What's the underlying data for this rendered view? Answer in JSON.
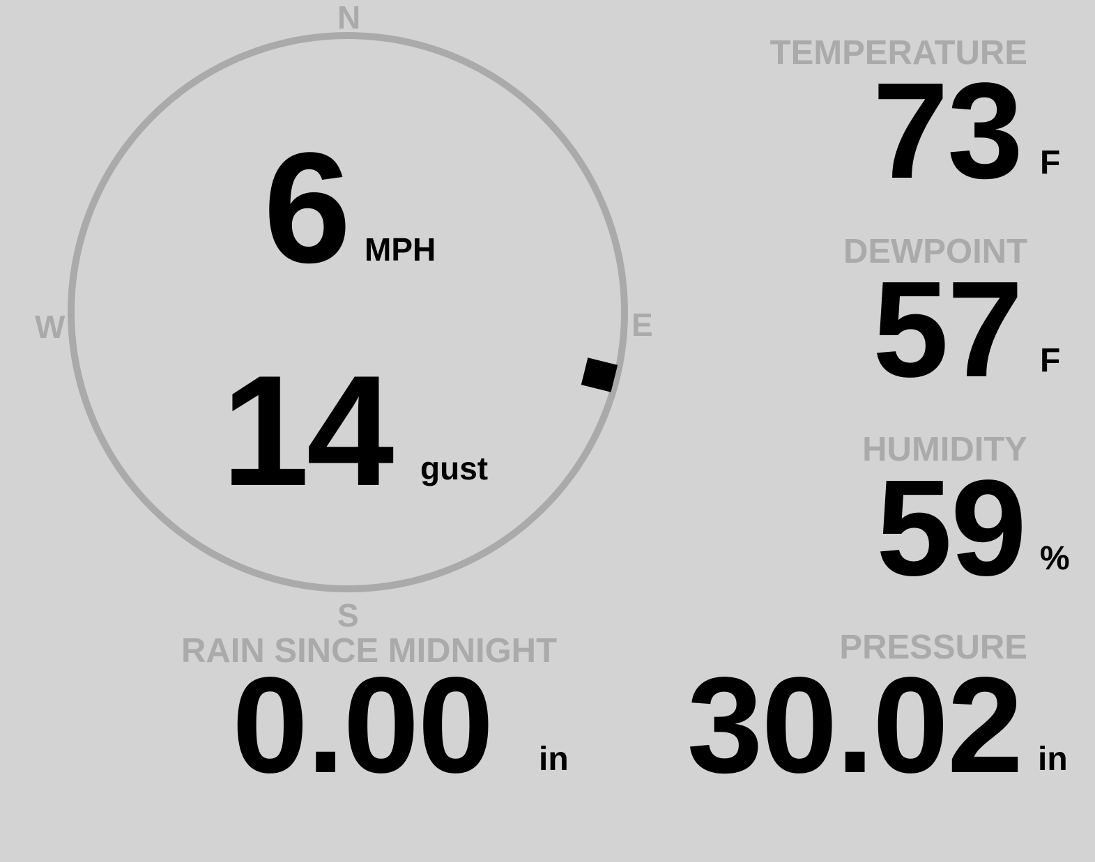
{
  "wind": {
    "compass": {
      "north": "N",
      "east": "E",
      "south": "S",
      "west": "W"
    },
    "speed": "6",
    "speed_unit": "MPH",
    "gust": "14",
    "gust_unit": "gust",
    "direction_deg": 104
  },
  "temperature": {
    "label": "TEMPERATURE",
    "value": "73",
    "unit": "F"
  },
  "dewpoint": {
    "label": "DEWPOINT",
    "value": "57",
    "unit": "F"
  },
  "humidity": {
    "label": "HUMIDITY",
    "value": "59",
    "unit": "%"
  },
  "rain": {
    "label": "RAIN SINCE MIDNIGHT",
    "value": "0.00",
    "unit": "in"
  },
  "pressure": {
    "label": "PRESSURE",
    "value": "30.02",
    "unit": "in"
  },
  "colors": {
    "background": "#d3d3d3",
    "label": "#aaaaaa",
    "value": "#000000"
  }
}
